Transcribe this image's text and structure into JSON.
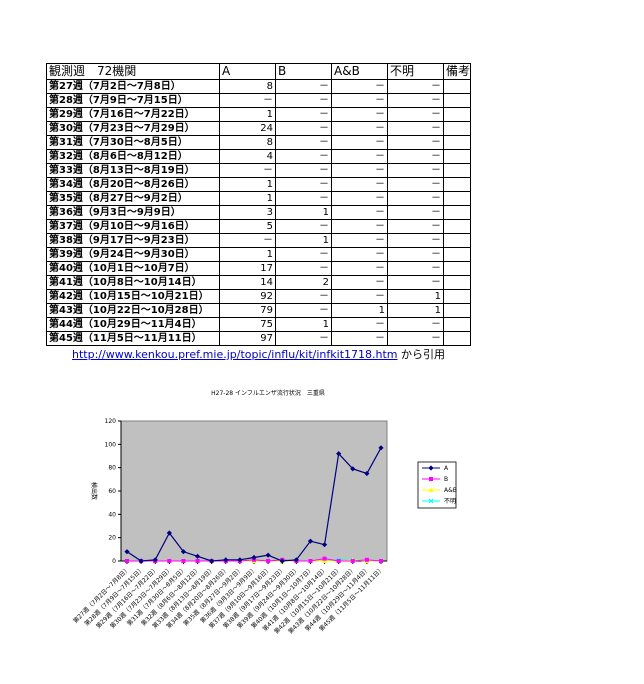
{
  "table": {
    "headers": [
      "観測週　72機関",
      "A",
      "B",
      "A&B",
      "不明",
      "備考"
    ],
    "rows": [
      {
        "week": "第27週（7月2日～7月8日）",
        "A": "8",
        "B": "－",
        "AB": "－",
        "unknown": "－"
      },
      {
        "week": "第28週（7月9日～7月15日）",
        "A": "－",
        "B": "－",
        "AB": "－",
        "unknown": "－"
      },
      {
        "week": "第29週（7月16日～7月22日）",
        "A": "1",
        "B": "－",
        "AB": "－",
        "unknown": "－"
      },
      {
        "week": "第30週（7月23日～7月29日）",
        "A": "24",
        "B": "－",
        "AB": "－",
        "unknown": "－"
      },
      {
        "week": "第31週（7月30日～8月5日）",
        "A": "8",
        "B": "－",
        "AB": "－",
        "unknown": "－"
      },
      {
        "week": "第32週（8月6日～8月12日）",
        "A": "4",
        "B": "－",
        "AB": "－",
        "unknown": "－"
      },
      {
        "week": "第33週（8月13日～8月19日）",
        "A": "－",
        "B": "－",
        "AB": "－",
        "unknown": "－"
      },
      {
        "week": "第34週（8月20日～8月26日）",
        "A": "1",
        "B": "－",
        "AB": "－",
        "unknown": "－"
      },
      {
        "week": "第35週（8月27日～9月2日）",
        "A": "1",
        "B": "－",
        "AB": "－",
        "unknown": "－"
      },
      {
        "week": "第36週（9月3日～9月9日）",
        "A": "3",
        "B": "1",
        "AB": "－",
        "unknown": "－"
      },
      {
        "week": "第37週（9月10日～9月16日）",
        "A": "5",
        "B": "－",
        "AB": "－",
        "unknown": "－"
      },
      {
        "week": "第38週（9月17日～9月23日）",
        "A": "－",
        "B": "1",
        "AB": "－",
        "unknown": "－"
      },
      {
        "week": "第39週（9月24日～9月30日）",
        "A": "1",
        "B": "－",
        "AB": "－",
        "unknown": "－"
      },
      {
        "week": "第40週（10月1日～10月7日）",
        "A": "17",
        "B": "－",
        "AB": "－",
        "unknown": "－"
      },
      {
        "week": "第41週（10月8日～10月14日）",
        "A": "14",
        "B": "2",
        "AB": "－",
        "unknown": "－"
      },
      {
        "week": "第42週（10月15日～10月21日）",
        "A": "92",
        "B": "－",
        "AB": "－",
        "unknown": "1"
      },
      {
        "week": "第43週（10月22日～10月28日）",
        "A": "79",
        "B": "－",
        "AB": "1",
        "unknown": "1"
      },
      {
        "week": "第44週（10月29日～11月4日）",
        "A": "75",
        "B": "1",
        "AB": "－",
        "unknown": "－"
      },
      {
        "week": "第45週（11月5日～11月11日）",
        "A": "97",
        "B": "－",
        "AB": "－",
        "unknown": "－"
      }
    ]
  },
  "source": {
    "url": "http://www.kenkou.pref.mie.jp/topic/influ/kit/infkit1718.htm",
    "suffix": "から引用"
  },
  "chart_data": {
    "type": "line",
    "title": "H27-28 インフルエンザ流行状況　三重県",
    "ylabel": "検出数",
    "xlabel": "",
    "ylim": [
      0,
      120
    ],
    "yticks": [
      0,
      20,
      40,
      60,
      80,
      100,
      120
    ],
    "grid": false,
    "plot_background": "#c0c0c0",
    "legend_position": "right",
    "categories": [
      "第27週（7月2日～7月8日）",
      "第28週（7月9日～7月15日）",
      "第29週（7月16日～7月22日）",
      "第30週（7月23日～7月29日）",
      "第31週（7月30日～8月5日）",
      "第32週（8月6日～8月12日）",
      "第33週（8月13日～8月19日）",
      "第34週（8月20日～8月26日）",
      "第35週（8月27日～9月2日）",
      "第36週（9月3日～9月9日）",
      "第37週（9月10日～9月16日）",
      "第38週（9月17日～9月23日）",
      "第39週（9月24日～9月30日）",
      "第40週（10月1日～10月7日）",
      "第41週（10月8日～10月14日）",
      "第42週（10月15日～10月21日）",
      "第43週（10月22日～10月28日）",
      "第44週（10月29日～11月4日）",
      "第45週（11月5日～11月11日）"
    ],
    "series": [
      {
        "name": "A",
        "color": "#000080",
        "marker": "diamond",
        "values": [
          8,
          0,
          1,
          24,
          8,
          4,
          0,
          1,
          1,
          3,
          5,
          0,
          1,
          17,
          14,
          92,
          79,
          75,
          97
        ]
      },
      {
        "name": "B",
        "color": "#ff00ff",
        "marker": "square",
        "values": [
          0,
          0,
          0,
          0,
          0,
          0,
          0,
          0,
          0,
          1,
          0,
          1,
          0,
          0,
          2,
          0,
          0,
          1,
          0
        ]
      },
      {
        "name": "A&B",
        "color": "#ffff00",
        "marker": "triangle",
        "values": [
          0,
          0,
          0,
          0,
          0,
          0,
          0,
          0,
          0,
          0,
          0,
          0,
          0,
          0,
          0,
          0,
          1,
          0,
          0
        ]
      },
      {
        "name": "不明",
        "color": "#00ffff",
        "marker": "x",
        "values": [
          0,
          0,
          0,
          0,
          0,
          0,
          0,
          0,
          0,
          0,
          0,
          0,
          0,
          0,
          0,
          1,
          1,
          0,
          0
        ]
      }
    ]
  }
}
